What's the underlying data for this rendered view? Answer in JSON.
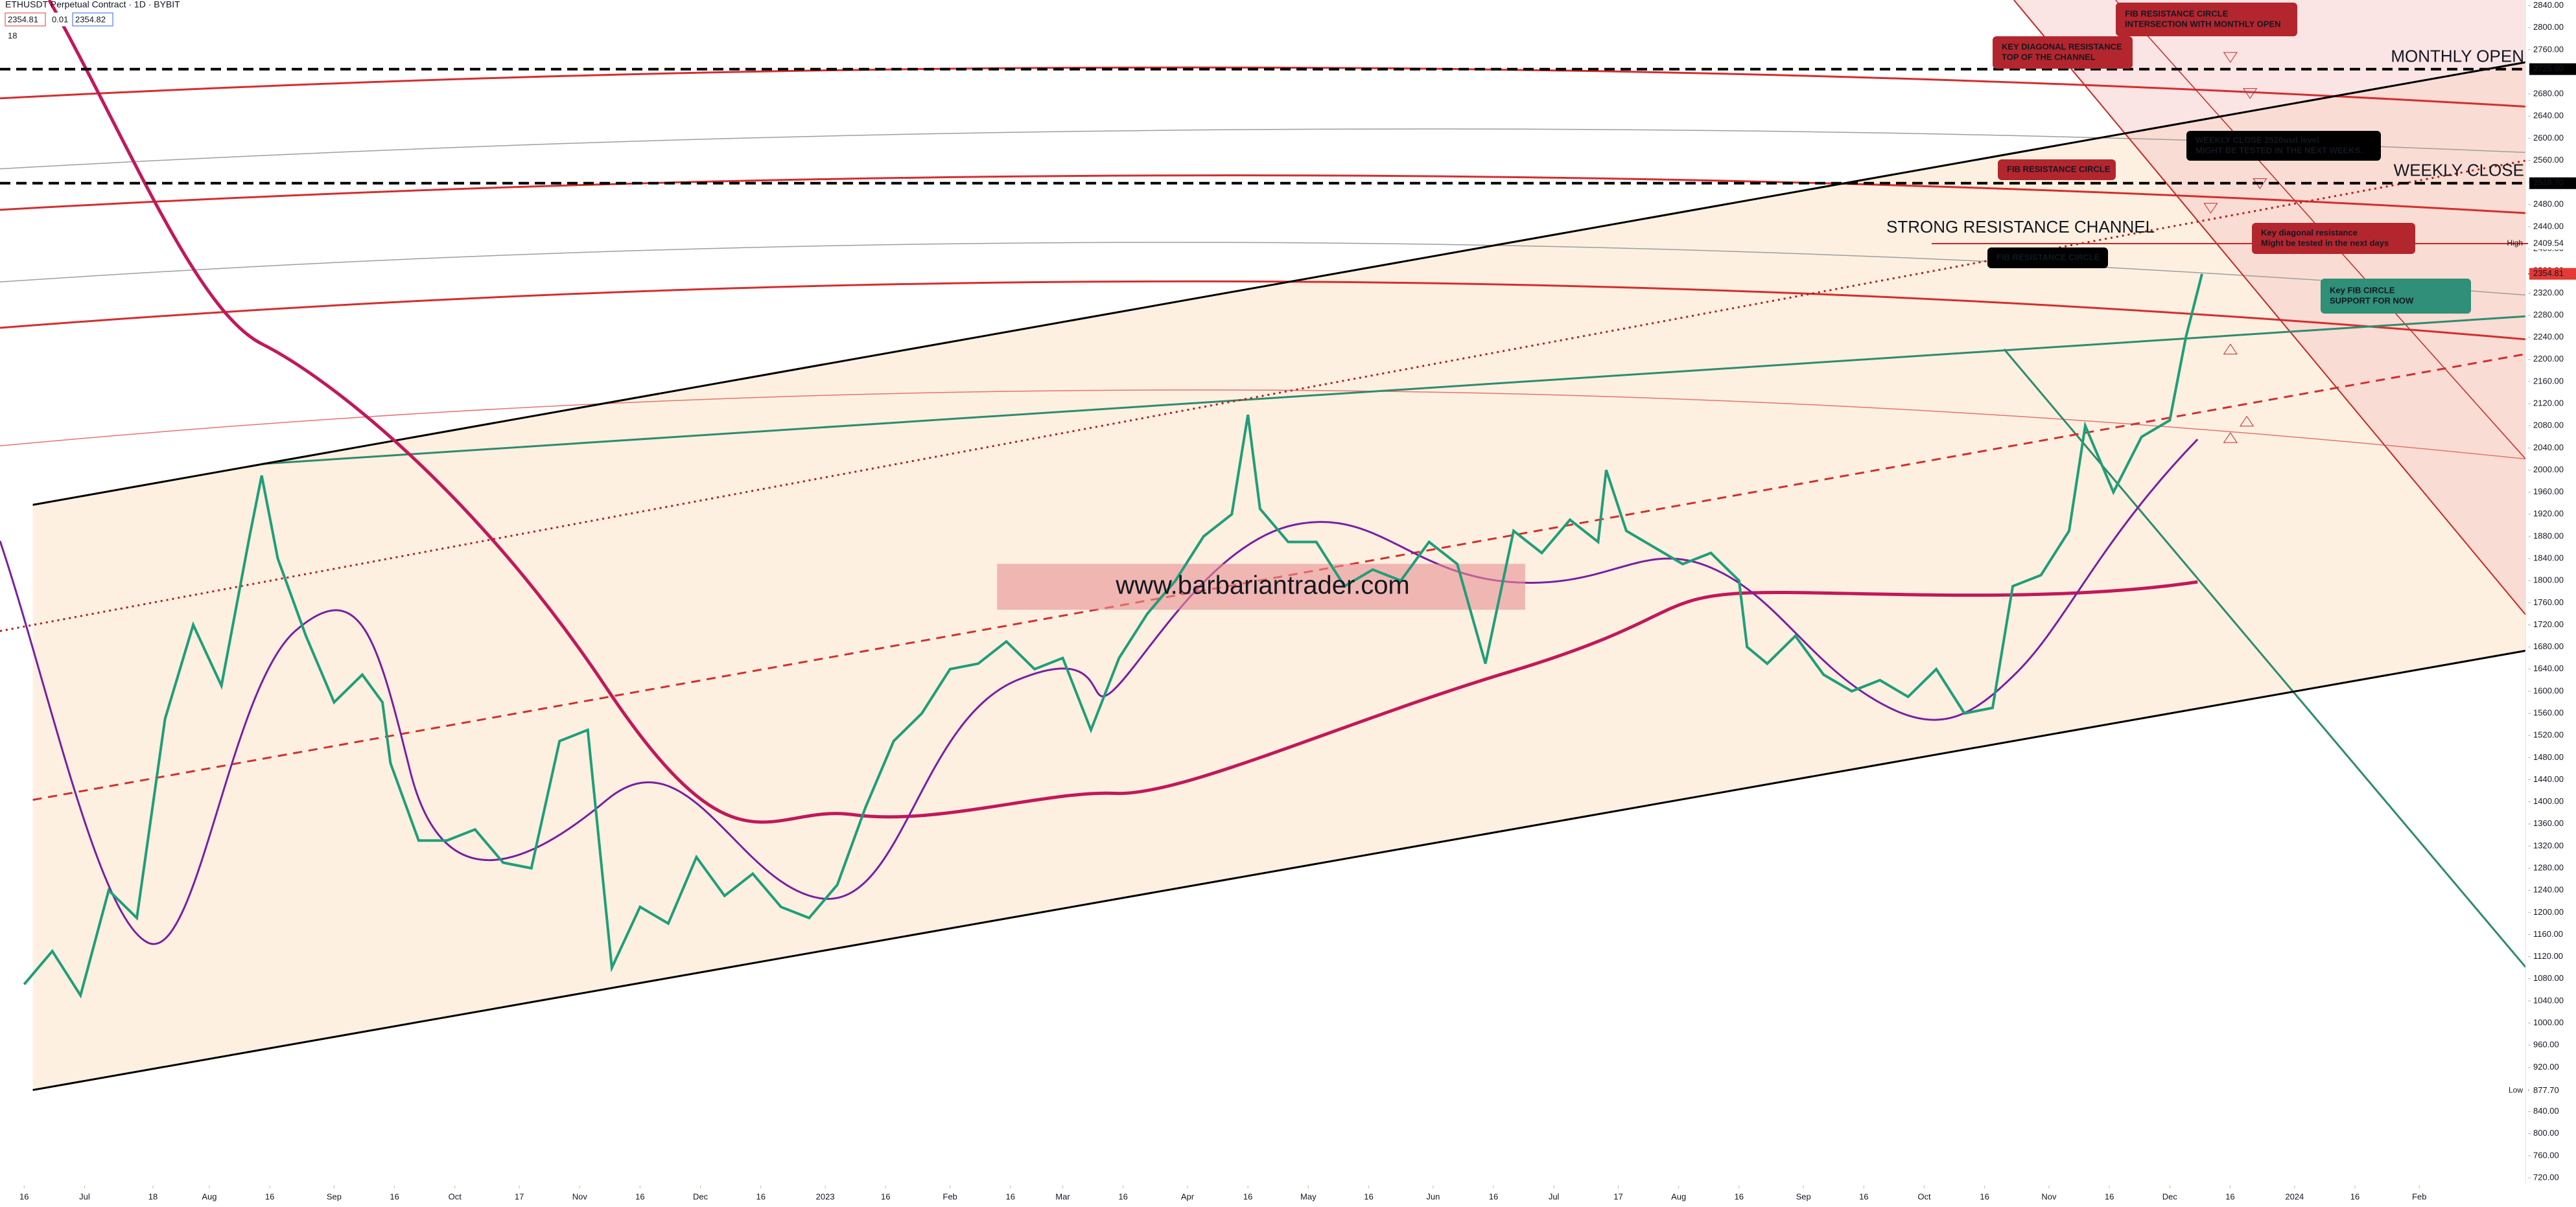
{
  "header": {
    "symbol": "ETHUSDT Perpetual Contract · 1D · BYBIT",
    "price_boxes": [
      "2354.81",
      "0.01",
      "2354.82"
    ],
    "indicator": "18"
  },
  "chart_data": {
    "type": "line",
    "series": [
      {
        "name": "ETHUSDT",
        "color": "#1f9e7a",
        "x": [
          "2022-06-16",
          "2022-06-23",
          "2022-06-30",
          "2022-07-07",
          "2022-07-14",
          "2022-07-21",
          "2022-07-28",
          "2022-08-04",
          "2022-08-11",
          "2022-08-14",
          "2022-08-18",
          "2022-08-25",
          "2022-09-01",
          "2022-09-08",
          "2022-09-13",
          "2022-09-15",
          "2022-09-22",
          "2022-09-29",
          "2022-10-06",
          "2022-10-13",
          "2022-10-20",
          "2022-10-27",
          "2022-11-03",
          "2022-11-09",
          "2022-11-16",
          "2022-11-23",
          "2022-11-30",
          "2022-12-07",
          "2022-12-14",
          "2022-12-21",
          "2022-12-28",
          "2023-01-04",
          "2023-01-11",
          "2023-01-18",
          "2023-01-25",
          "2023-02-01",
          "2023-02-08",
          "2023-02-15",
          "2023-02-22",
          "2023-03-01",
          "2023-03-08",
          "2023-03-15",
          "2023-03-22",
          "2023-03-29",
          "2023-04-05",
          "2023-04-12",
          "2023-04-16",
          "2023-04-19",
          "2023-04-26",
          "2023-05-03",
          "2023-05-10",
          "2023-05-17",
          "2023-05-24",
          "2023-05-31",
          "2023-06-07",
          "2023-06-14",
          "2023-06-21",
          "2023-06-28",
          "2023-07-05",
          "2023-07-12",
          "2023-07-14",
          "2023-07-19",
          "2023-07-26",
          "2023-08-02",
          "2023-08-09",
          "2023-08-16",
          "2023-08-18",
          "2023-08-23",
          "2023-08-30",
          "2023-09-06",
          "2023-09-13",
          "2023-09-20",
          "2023-09-27",
          "2023-10-04",
          "2023-10-11",
          "2023-10-18",
          "2023-10-23",
          "2023-10-30",
          "2023-11-06",
          "2023-11-10",
          "2023-11-17",
          "2023-11-24",
          "2023-12-01",
          "2023-12-05",
          "2023-12-09"
        ],
        "values": [
          1070,
          1130,
          1050,
          1240,
          1190,
          1550,
          1720,
          1610,
          1880,
          1990,
          1840,
          1700,
          1580,
          1630,
          1580,
          1470,
          1330,
          1330,
          1350,
          1290,
          1280,
          1510,
          1530,
          1100,
          1210,
          1180,
          1300,
          1230,
          1270,
          1210,
          1190,
          1250,
          1390,
          1510,
          1560,
          1640,
          1650,
          1690,
          1640,
          1660,
          1530,
          1660,
          1740,
          1800,
          1880,
          1920,
          2100,
          1930,
          1870,
          1870,
          1790,
          1820,
          1800,
          1870,
          1830,
          1650,
          1890,
          1850,
          1910,
          1870,
          2000,
          1890,
          1860,
          1830,
          1850,
          1800,
          1680,
          1650,
          1700,
          1630,
          1600,
          1620,
          1590,
          1640,
          1560,
          1570,
          1790,
          1810,
          1890,
          2080,
          1960,
          2060,
          2090,
          2240,
          2354.81
        ]
      }
    ],
    "xlim": [
      "2022-06-10",
      "2024-02-28"
    ],
    "xticks": [
      {
        "value": "2022-06-16",
        "label": "16"
      },
      {
        "value": "2022-07-01",
        "label": "Jul"
      },
      {
        "value": "2022-07-18",
        "label": "18"
      },
      {
        "value": "2022-08-01",
        "label": "Aug"
      },
      {
        "value": "2022-08-16",
        "label": "16"
      },
      {
        "value": "2022-09-01",
        "label": "Sep"
      },
      {
        "value": "2022-09-16",
        "label": "16"
      },
      {
        "value": "2022-10-01",
        "label": "Oct"
      },
      {
        "value": "2022-10-17",
        "label": "17"
      },
      {
        "value": "2022-11-01",
        "label": "Nov"
      },
      {
        "value": "2022-11-16",
        "label": "16"
      },
      {
        "value": "2022-12-01",
        "label": "Dec"
      },
      {
        "value": "2022-12-16",
        "label": "16"
      },
      {
        "value": "2023-01-01",
        "label": "2023"
      },
      {
        "value": "2023-01-16",
        "label": "16"
      },
      {
        "value": "2023-02-01",
        "label": "Feb"
      },
      {
        "value": "2023-02-16",
        "label": "16"
      },
      {
        "value": "2023-03-01",
        "label": "Mar"
      },
      {
        "value": "2023-03-16",
        "label": "16"
      },
      {
        "value": "2023-04-01",
        "label": "Apr"
      },
      {
        "value": "2023-04-16",
        "label": "16"
      },
      {
        "value": "2023-05-01",
        "label": "May"
      },
      {
        "value": "2023-05-16",
        "label": "16"
      },
      {
        "value": "2023-06-01",
        "label": "Jun"
      },
      {
        "value": "2023-06-16",
        "label": "16"
      },
      {
        "value": "2023-07-01",
        "label": "Jul"
      },
      {
        "value": "2023-07-17",
        "label": "17"
      },
      {
        "value": "2023-08-01",
        "label": "Aug"
      },
      {
        "value": "2023-08-16",
        "label": "16"
      },
      {
        "value": "2023-09-01",
        "label": "Sep"
      },
      {
        "value": "2023-09-16",
        "label": "16"
      },
      {
        "value": "2023-10-01",
        "label": "Oct"
      },
      {
        "value": "2023-10-16",
        "label": "16"
      },
      {
        "value": "2023-11-01",
        "label": "Nov"
      },
      {
        "value": "2023-11-16",
        "label": "16"
      },
      {
        "value": "2023-12-01",
        "label": "Dec"
      },
      {
        "value": "2023-12-16",
        "label": "16"
      },
      {
        "value": "2024-01-01",
        "label": "2024"
      },
      {
        "value": "2024-01-16",
        "label": "16"
      },
      {
        "value": "2024-02-01",
        "label": "Feb"
      }
    ],
    "ylim": [
      706,
      2850
    ],
    "yticks": [
      {
        "value": 720,
        "label": "720.00"
      },
      {
        "value": 760,
        "label": "760.00"
      },
      {
        "value": 800,
        "label": "800.00"
      },
      {
        "value": 840,
        "label": "840.00"
      },
      {
        "value": 880,
        "label": "880.00"
      },
      {
        "value": 920,
        "label": "920.00"
      },
      {
        "value": 960,
        "label": "960.00"
      },
      {
        "value": 1000,
        "label": "1000.00"
      },
      {
        "value": 1040,
        "label": "1040.00"
      },
      {
        "value": 1080,
        "label": "1080.00"
      },
      {
        "value": 1120,
        "label": "1120.00"
      },
      {
        "value": 1160,
        "label": "1160.00"
      },
      {
        "value": 1200,
        "label": "1200.00"
      },
      {
        "value": 1240,
        "label": "1240.00"
      },
      {
        "value": 1280,
        "label": "1280.00"
      },
      {
        "value": 1320,
        "label": "1320.00"
      },
      {
        "value": 1360,
        "label": "1360.00"
      },
      {
        "value": 1400,
        "label": "1400.00"
      },
      {
        "value": 1440,
        "label": "1440.00"
      },
      {
        "value": 1480,
        "label": "1480.00"
      },
      {
        "value": 1520,
        "label": "1520.00"
      },
      {
        "value": 1560,
        "label": "1560.00"
      },
      {
        "value": 1600,
        "label": "1600.00"
      },
      {
        "value": 1640,
        "label": "1640.00"
      },
      {
        "value": 1680,
        "label": "1680.00"
      },
      {
        "value": 1720,
        "label": "1720.00"
      },
      {
        "value": 1760,
        "label": "1760.00"
      },
      {
        "value": 1800,
        "label": "1800.00"
      },
      {
        "value": 1840,
        "label": "1840.00"
      },
      {
        "value": 1880,
        "label": "1880.00"
      },
      {
        "value": 1920,
        "label": "1920.00"
      },
      {
        "value": 1960,
        "label": "1960.00"
      },
      {
        "value": 2000,
        "label": "2000.00"
      },
      {
        "value": 2040,
        "label": "2040.00"
      },
      {
        "value": 2080,
        "label": "2080.00"
      },
      {
        "value": 2120,
        "label": "2120.00"
      },
      {
        "value": 2160,
        "label": "2160.00"
      },
      {
        "value": 2200,
        "label": "2200.00"
      },
      {
        "value": 2240,
        "label": "2240.00"
      },
      {
        "value": 2280,
        "label": "2280.00"
      },
      {
        "value": 2320,
        "label": "2320.00"
      },
      {
        "value": 2360,
        "label": "2360.00"
      },
      {
        "value": 2400,
        "label": "2400.00"
      },
      {
        "value": 2440,
        "label": "2440.00"
      },
      {
        "value": 2480,
        "label": "2480.00"
      },
      {
        "value": 2520,
        "label": "2520.00"
      },
      {
        "value": 2560,
        "label": "2560.00"
      },
      {
        "value": 2600,
        "label": "2600.00"
      },
      {
        "value": 2640,
        "label": "2640.00"
      },
      {
        "value": 2680,
        "label": "2680.00"
      },
      {
        "value": 2720,
        "label": "2720.00"
      },
      {
        "value": 2760,
        "label": "2760.00"
      },
      {
        "value": 2800,
        "label": "2800.00"
      },
      {
        "value": 2840,
        "label": "2840.00"
      }
    ],
    "levels": [
      {
        "name": "MONTHLY OPEN",
        "value": 2725,
        "label": "2725.00",
        "color": "#000000"
      },
      {
        "name": "WEEKLY CLOSE",
        "value": 2518.7,
        "label": "2518.70",
        "color": "#000000"
      },
      {
        "name": "High",
        "value": 2409.54,
        "label": "2409.54",
        "color": "#c62828"
      },
      {
        "value": 2354.81,
        "label": "2354.81",
        "color": "#e53935"
      },
      {
        "name": "Low",
        "value": 877.7,
        "label": "877.70",
        "color": "#c0c7d0"
      }
    ],
    "channel_title": "STRONG RESISTANCE CHANNEL",
    "watermark": "www.barbariantrader.com",
    "annotations": [
      {
        "lines": [
          "FIB RESISTANCE CIRCLE",
          "INTERSECTION WITH MONTHLY OPEN"
        ],
        "color": "#b3262e"
      },
      {
        "lines": [
          "KEY DIAGONAL RESISTANCE",
          "TOP OF THE CHANNEL"
        ],
        "color": "#b3262e"
      },
      {
        "lines": [
          "WEEKLY CLOSE  2520usd level",
          "MIGHT BE TESTED IN THE NEXT WEEKS."
        ],
        "color": "#000000"
      },
      {
        "lines": [
          "FIB RESISTANCE CIRCLE"
        ],
        "color": "#b3262e"
      },
      {
        "lines": [
          "Key diagonal resistance",
          "Might be tested in the next days"
        ],
        "color": "#b3262e"
      },
      {
        "lines": [
          "FIB RESISTANCE CIRCLE"
        ],
        "color": "#000000"
      },
      {
        "lines": [
          "Key FIB CIRCLE",
          "SUPPORT FOR NOW"
        ],
        "color": "#2f8f78"
      }
    ]
  }
}
